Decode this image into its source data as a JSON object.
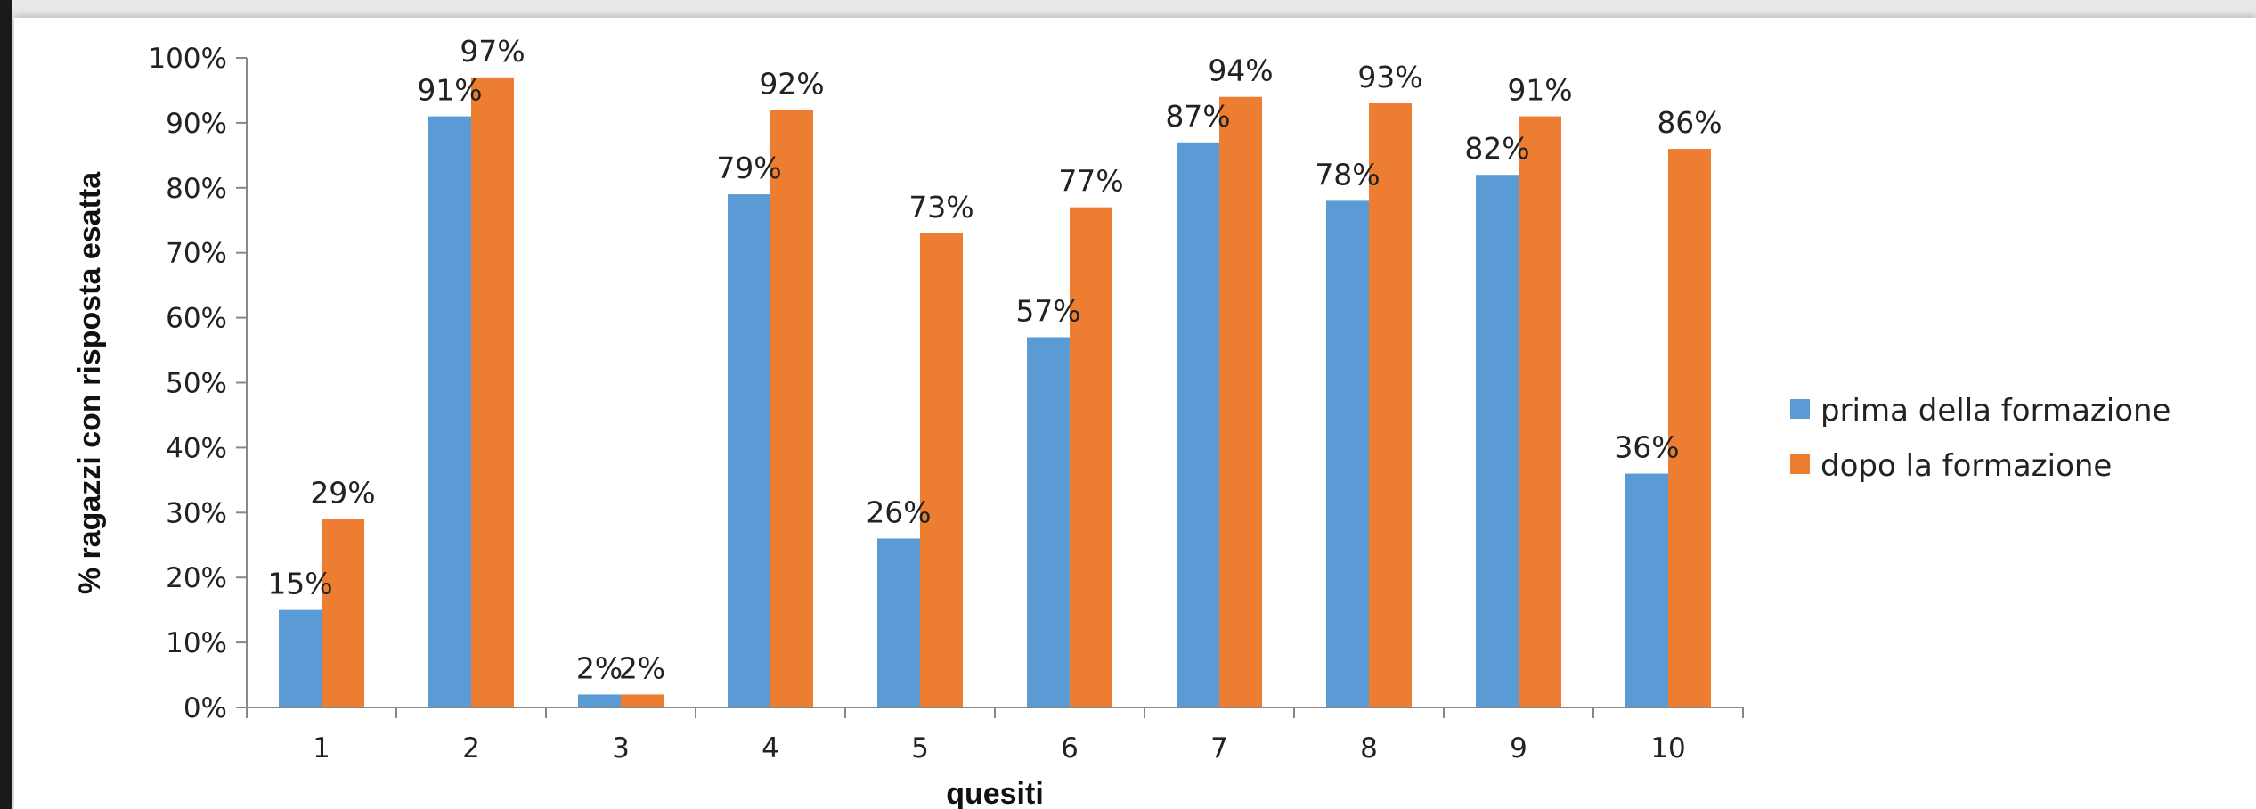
{
  "chart_data": {
    "type": "bar",
    "categories": [
      "1",
      "2",
      "3",
      "4",
      "5",
      "6",
      "7",
      "8",
      "9",
      "10"
    ],
    "series": [
      {
        "name": "prima della formazione",
        "values": [
          15,
          91,
          2,
          79,
          26,
          57,
          87,
          78,
          82,
          36
        ],
        "color": "#5b9bd5"
      },
      {
        "name": "dopo la formazione",
        "values": [
          29,
          97,
          2,
          92,
          73,
          77,
          94,
          93,
          91,
          86
        ],
        "color": "#ed7d31"
      }
    ],
    "data_labels": {
      "series_0": [
        "15%",
        "91%",
        "2%",
        "79%",
        "26%",
        "57%",
        "87%",
        "78%",
        "82%",
        "36%"
      ],
      "series_1": [
        "29%",
        "97%",
        "2%",
        "92%",
        "73%",
        "77%",
        "94%",
        "93%",
        "91%",
        "86%"
      ]
    },
    "y_ticks": [
      "0%",
      "10%",
      "20%",
      "30%",
      "40%",
      "50%",
      "60%",
      "70%",
      "80%",
      "90%",
      "100%"
    ],
    "ylim": [
      0,
      100
    ],
    "xlabel": "quesiti",
    "ylabel": "% ragazzi con risposta esatta",
    "title": "",
    "grid": false,
    "legend": "right"
  }
}
